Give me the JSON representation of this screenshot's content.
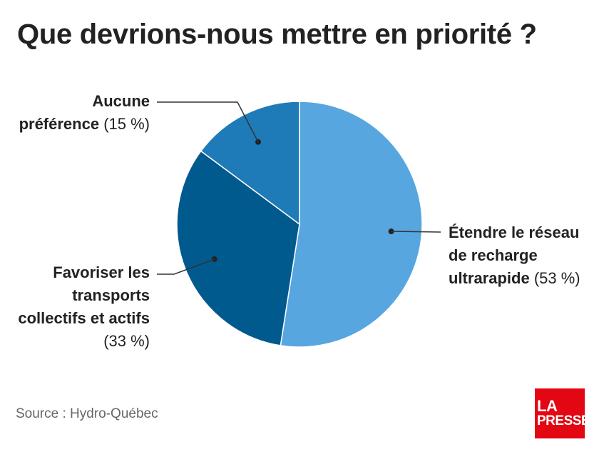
{
  "header": {
    "title": "Que devrions-nous mettre en priorité ?"
  },
  "chart_data": {
    "type": "pie",
    "title": "Que devrions-nous mettre en priorité ?",
    "start": "12 o'clock, clockwise",
    "slices": [
      {
        "label_lines": [
          "Étendre le réseau",
          "de recharge",
          "ultrarapide"
        ],
        "pct_label": "(53 %)",
        "value": 53,
        "color": "#57a6e0"
      },
      {
        "label_lines": [
          "Favoriser les",
          "transports",
          "collectifs et actifs"
        ],
        "pct_label": "(33 %)",
        "value": 33,
        "color": "#005a8e"
      },
      {
        "label_lines": [
          "Aucune",
          "préférence"
        ],
        "pct_label": "(15 %)",
        "value": 15,
        "color": "#1f7bb8"
      }
    ]
  },
  "footer": {
    "source": "Source : Hydro-Québec",
    "logo_line1": "LA",
    "logo_line2": "PRESSE",
    "logo_color": "#e30613"
  }
}
